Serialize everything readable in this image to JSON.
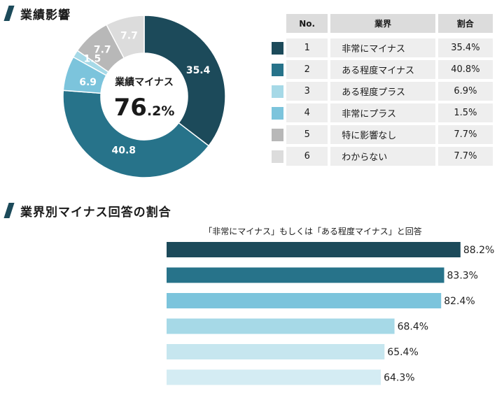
{
  "section1": {
    "title": "業績影響"
  },
  "section2": {
    "title": "業界別マイナス回答の割合"
  },
  "donut": {
    "center_label": "業績マイナス",
    "center_value_big": "76",
    "center_value_small": ".2%"
  },
  "table": {
    "headers": [
      "No.",
      "業界",
      "割合"
    ],
    "rows": [
      {
        "no": "1",
        "name": "非常にマイナス",
        "pct": "35.4%",
        "color": "#1c4a5a"
      },
      {
        "no": "2",
        "name": "ある程度マイナス",
        "pct": "40.8%",
        "color": "#27738a"
      },
      {
        "no": "3",
        "name": "ある程度プラス",
        "pct": "6.9%",
        "color": "#a6d9e7"
      },
      {
        "no": "4",
        "name": "非常にプラス",
        "pct": "1.5%",
        "color": "#7cc4dc"
      },
      {
        "no": "5",
        "name": "特に影響なし",
        "pct": "7.7%",
        "color": "#b8b8b8"
      },
      {
        "no": "6",
        "name": "わからない",
        "pct": "7.7%",
        "color": "#dcdcdc"
      }
    ]
  },
  "bar_caption": "「非常にマイナス」もしくは「ある程度マイナス」と回答",
  "chart_data": [
    {
      "type": "pie",
      "categories": [
        "非常にマイナス",
        "ある程度マイナス",
        "ある程度プラス",
        "非常にプラス",
        "特に影響なし",
        "わからない"
      ],
      "values": [
        35.4,
        40.8,
        6.9,
        1.5,
        7.7,
        7.7
      ],
      "labels": [
        "35.4",
        "40.8",
        "6.9",
        "1.5",
        "7.7",
        "7.7"
      ],
      "colors": [
        "#1c4a5a",
        "#27738a",
        "#7cc4dc",
        "#a6d9e7",
        "#b8b8b8",
        "#dcdcdc"
      ],
      "donut": true
    },
    {
      "type": "bar",
      "orientation": "horizontal",
      "values": [
        88.2,
        83.3,
        82.4,
        68.4,
        65.4,
        64.3
      ],
      "labels": [
        "88.2%",
        "83.3%",
        "82.4%",
        "68.4%",
        "65.4%",
        "64.3%"
      ],
      "colors": [
        "#1c4a5a",
        "#27738a",
        "#7cc4dc",
        "#a6d9e7",
        "#c6e6ef",
        "#d4ecf3"
      ],
      "xlim": [
        0,
        100
      ]
    }
  ]
}
